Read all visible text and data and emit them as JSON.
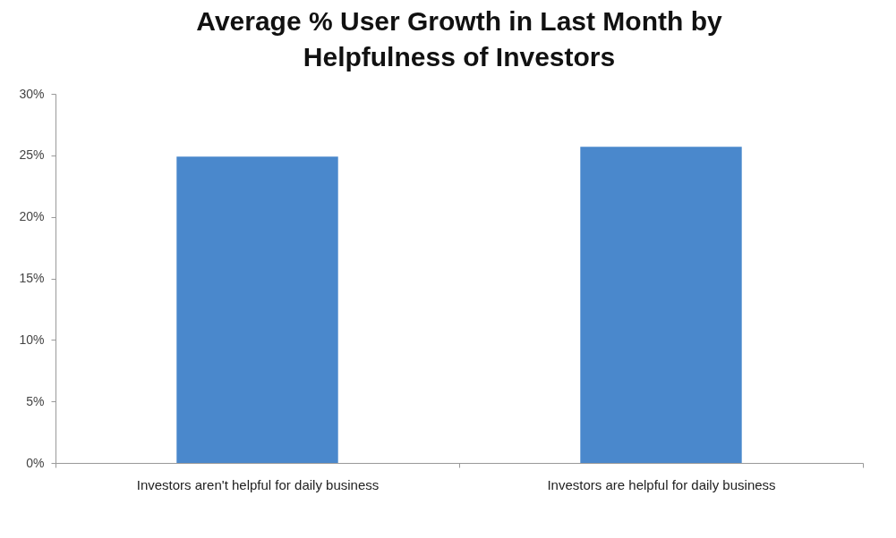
{
  "chart_data": {
    "type": "bar",
    "title": "Average % User Growth in Last Month by Helpfulness of Investors",
    "categories": [
      "Investors aren't helpful for daily business",
      "Investors are helpful for daily business"
    ],
    "values": [
      24.9,
      25.7
    ],
    "color": "#4a88cc",
    "ylim": [
      0,
      30
    ],
    "yticks": [
      {
        "value": 0,
        "label": "0%"
      },
      {
        "value": 5,
        "label": "5%"
      },
      {
        "value": 10,
        "label": "10%"
      },
      {
        "value": 15,
        "label": "15%"
      },
      {
        "value": 20,
        "label": "20%"
      },
      {
        "value": 25,
        "label": "25%"
      },
      {
        "value": 30,
        "label": "30%"
      }
    ],
    "grid": false
  }
}
